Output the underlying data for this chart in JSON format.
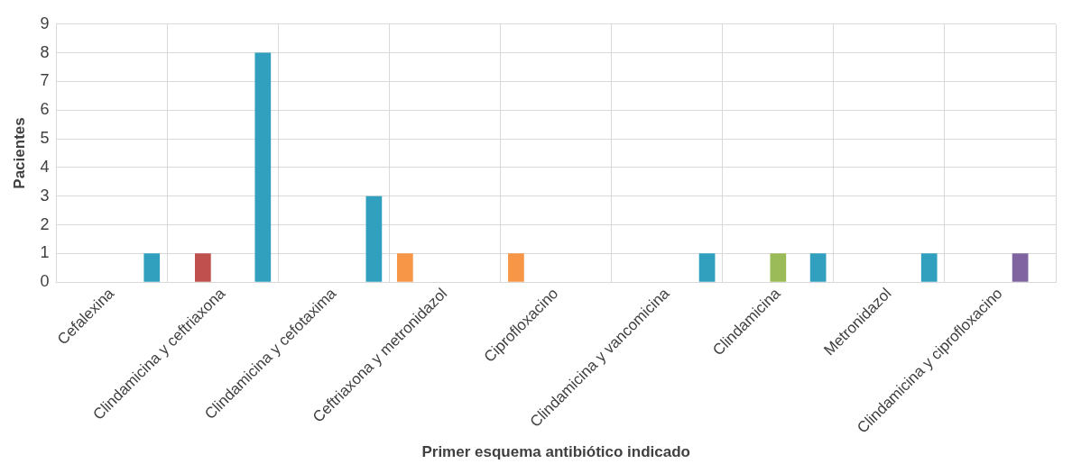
{
  "chart_data": {
    "type": "bar",
    "xlabel": "Primer esquema antibiótico indicado",
    "ylabel": "Pacientes",
    "categories": [
      "Cefalexina",
      "Clindamicina y ceftriaxona",
      "Clindamicina y cefotaxima",
      "Ceftriaxona y metronidazol",
      "Ciprofloxacino",
      "Clindamicina y vancomicina",
      "Clindamicina",
      "Metronidazol",
      "Clindamicina y ciprofloxacino"
    ],
    "series": [
      {
        "color": "#f79646",
        "values": [
          null,
          null,
          null,
          1,
          1,
          null,
          null,
          null,
          null
        ]
      },
      {
        "color": "#c0504d",
        "values": [
          null,
          1,
          null,
          null,
          null,
          null,
          null,
          null,
          null
        ]
      },
      {
        "color": "#9bbb59",
        "values": [
          null,
          null,
          null,
          null,
          null,
          null,
          1,
          null,
          null
        ]
      },
      {
        "color": "#8064a2",
        "values": [
          null,
          null,
          null,
          null,
          null,
          null,
          null,
          null,
          1
        ]
      },
      {
        "color": "#31a0bf",
        "values": [
          1,
          8,
          3,
          null,
          null,
          1,
          1,
          1,
          null
        ]
      }
    ],
    "ylim": [
      0,
      9
    ],
    "yticks": [
      0,
      1,
      2,
      3,
      4,
      5,
      6,
      7,
      8,
      9
    ],
    "grid": true,
    "legend": false
  }
}
